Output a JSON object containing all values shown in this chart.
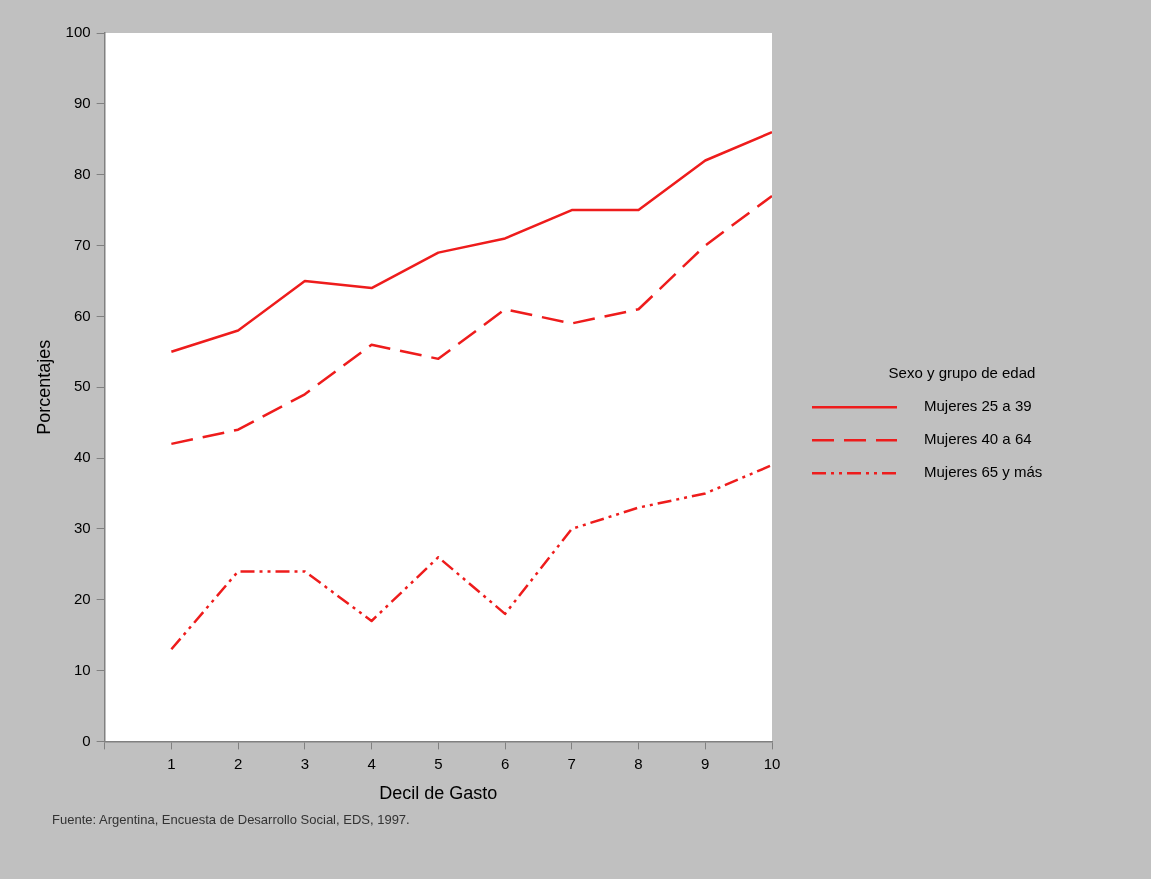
{
  "chart_data": {
    "type": "line",
    "xlabel": "Decil de Gasto",
    "ylabel": "Porcentajes",
    "legend_title": "Sexo y grupo de edad",
    "x": [
      1,
      2,
      3,
      4,
      5,
      6,
      7,
      8,
      9,
      10
    ],
    "xlim": [
      0,
      10
    ],
    "xticks": [
      {
        "value": 0,
        "label": null
      },
      1,
      2,
      3,
      4,
      5,
      6,
      7,
      8,
      9,
      10
    ],
    "ylim": [
      0,
      100
    ],
    "yticks": [
      0,
      10,
      20,
      30,
      40,
      50,
      60,
      70,
      80,
      90,
      100
    ],
    "series": [
      {
        "name": "Mujeres 25 a 39",
        "color": "#ee1c1c",
        "line_style": "solid",
        "values": [
          55,
          58,
          65,
          64,
          69,
          71,
          75,
          75,
          82,
          86
        ]
      },
      {
        "name": "Mujeres 40 a 64",
        "color": "#ee1c1c",
        "line_style": "dashed",
        "values": [
          42,
          44,
          49,
          56,
          54,
          61,
          59,
          61,
          70,
          77
        ]
      },
      {
        "name": "Mujeres 65 y más",
        "color": "#ee1c1c",
        "line_style": "dashdot",
        "values": [
          13,
          24,
          24,
          17,
          26,
          18,
          30,
          33,
          35,
          39
        ]
      }
    ],
    "grid": false,
    "legend": "right",
    "marker": "none",
    "annotations": [
      "Fuente: Argentina, Encuesta de Desarrollo Social, EDS, 1997."
    ]
  }
}
